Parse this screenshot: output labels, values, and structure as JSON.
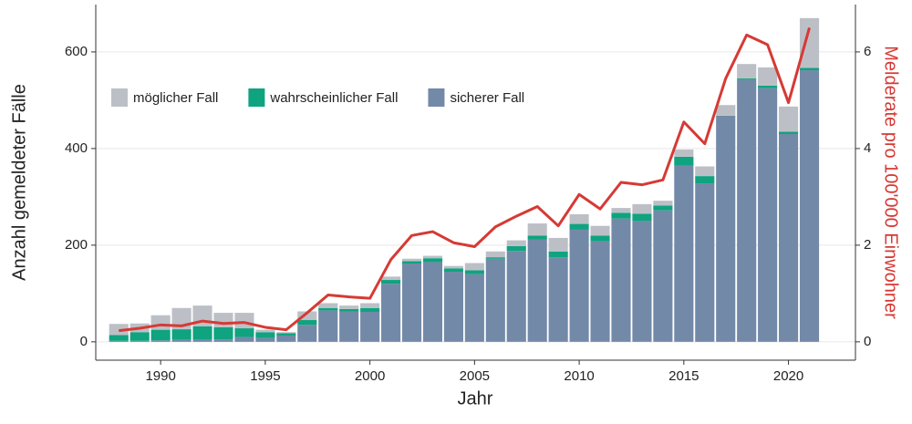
{
  "chart_data": {
    "type": "bar",
    "stacked": true,
    "xlabel": "Jahr",
    "ylabel": "Anzahl gemeldeter Fälle",
    "y2label": "Melderate pro 100'000 Einwohner",
    "x": [
      1988,
      1989,
      1990,
      1991,
      1992,
      1993,
      1994,
      1995,
      1996,
      1997,
      1998,
      1999,
      2000,
      2001,
      2002,
      2003,
      2004,
      2005,
      2006,
      2007,
      2008,
      2009,
      2010,
      2011,
      2012,
      2013,
      2014,
      2015,
      2016,
      2017,
      2018,
      2019,
      2020,
      2021
    ],
    "series": [
      {
        "name": "sicherer Fall",
        "color": "#7389a8",
        "type": "bar",
        "values": [
          2,
          2,
          3,
          4,
          4,
          5,
          10,
          8,
          13,
          35,
          65,
          63,
          62,
          120,
          162,
          165,
          145,
          140,
          172,
          188,
          212,
          175,
          232,
          208,
          255,
          250,
          272,
          365,
          328,
          468,
          542,
          525,
          430,
          562
        ]
      },
      {
        "name": "wahrscheinlicher Fall",
        "color": "#0fa37f",
        "type": "bar",
        "values": [
          12,
          18,
          22,
          22,
          28,
          25,
          18,
          12,
          5,
          10,
          5,
          5,
          8,
          8,
          5,
          8,
          7,
          8,
          3,
          10,
          8,
          12,
          12,
          12,
          12,
          15,
          10,
          18,
          15,
          0,
          3,
          5,
          5,
          5
        ]
      },
      {
        "name": "möglicher Fall",
        "color": "#bcc0c6",
        "type": "bar",
        "values": [
          23,
          18,
          30,
          44,
          43,
          30,
          32,
          5,
          2,
          18,
          10,
          7,
          10,
          7,
          5,
          5,
          5,
          15,
          12,
          12,
          25,
          28,
          20,
          20,
          10,
          20,
          10,
          15,
          20,
          22,
          30,
          38,
          52,
          103
        ]
      },
      {
        "type": "line",
        "axis": "y2",
        "color": "#d63a35",
        "values": [
          0.23,
          0.28,
          0.35,
          0.33,
          0.43,
          0.38,
          0.4,
          0.3,
          0.25,
          0.6,
          0.97,
          0.93,
          0.9,
          1.7,
          2.2,
          2.28,
          2.05,
          1.97,
          2.38,
          2.6,
          2.8,
          2.4,
          3.05,
          2.75,
          3.3,
          3.25,
          3.35,
          4.55,
          4.1,
          5.45,
          6.35,
          6.15,
          4.95,
          6.5
        ]
      }
    ],
    "xlim": [
      1986.9,
      2023.2
    ],
    "xticks": [
      1990,
      1995,
      2000,
      2005,
      2010,
      2015,
      2020
    ],
    "ylim": [
      -38,
      698
    ],
    "yticks": [
      0,
      200,
      400,
      600
    ],
    "y2lim": [
      -0.38,
      6.98
    ],
    "y2ticks": [
      0,
      2,
      4,
      6
    ],
    "grid": true,
    "legend": "top-left"
  }
}
